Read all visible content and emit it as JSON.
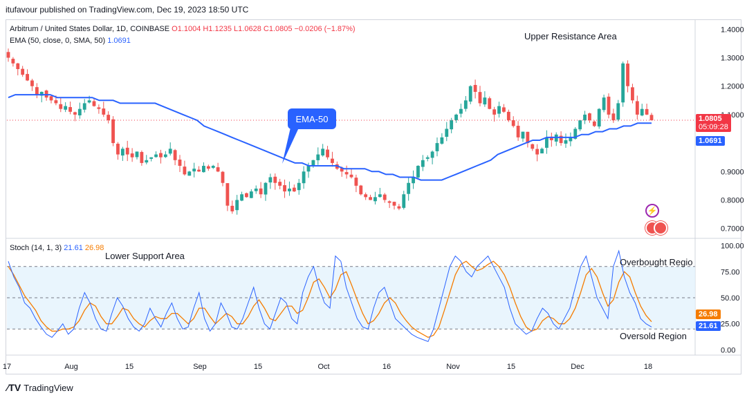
{
  "publisher": "itufavour published on TradingView.com, Dec 19, 2023 18:50 UTC",
  "legend": {
    "symbol": "Arbitrum / United States Dollar, 1D, COINBASE",
    "ohlc": "O1.1004  H1.1235  L1.0628  C1.0805  −0.0206 (−1.87%)",
    "ema_label": "EMA (50, close, 0, SMA, 50)",
    "ema_value": "1.0691",
    "stoch_label": "Stoch (14, 1, 3)",
    "stoch_k": "21.61",
    "stoch_d": "26.98"
  },
  "annotations": {
    "upper_resistance": "Upper Resistance Area",
    "lower_support": "Lower Support Area",
    "ema_callout": "EMA-50",
    "overbought": "Overbought Regio",
    "oversold": "Oversold Region"
  },
  "price_tags": {
    "last_price": "1.0805",
    "countdown": "05:09:28",
    "ema": "1.0691",
    "stoch_d": "26.98",
    "stoch_k": "21.61"
  },
  "footer": {
    "brand": "TradingView"
  },
  "colors": {
    "up": "#26a69a",
    "down": "#ef5350",
    "ema": "#2962ff",
    "stoch_k": "#2962ff",
    "stoch_d": "#f57c00",
    "band": "#e3f2fd"
  },
  "chart_data": [
    {
      "type": "candlestick",
      "title": "Arbitrum / United States Dollar, 1D, COINBASE",
      "ylim": [
        0.67,
        1.43
      ],
      "y_ticks": [
        "1.4000",
        "1.3000",
        "1.2000",
        "1.1000",
        "0.9000",
        "0.8000",
        "0.7000"
      ],
      "x_ticks": [
        "17",
        "Aug",
        "15",
        "Sep",
        "15",
        "Oct",
        "16",
        "Nov",
        "15",
        "Dec",
        "18"
      ],
      "close_series": [
        1.3,
        1.28,
        1.26,
        1.24,
        1.22,
        1.2,
        1.17,
        1.18,
        1.16,
        1.15,
        1.14,
        1.12,
        1.13,
        1.11,
        1.1,
        1.12,
        1.14,
        1.15,
        1.13,
        1.12,
        1.1,
        1.08,
        1.0,
        0.96,
        0.98,
        0.96,
        0.95,
        0.97,
        0.93,
        0.94,
        0.95,
        0.96,
        0.95,
        0.96,
        0.98,
        0.94,
        0.92,
        0.89,
        0.9,
        0.91,
        0.9,
        0.92,
        0.91,
        0.92,
        0.9,
        0.86,
        0.78,
        0.76,
        0.8,
        0.82,
        0.81,
        0.83,
        0.84,
        0.82,
        0.86,
        0.88,
        0.86,
        0.85,
        0.83,
        0.84,
        0.83,
        0.86,
        0.9,
        0.92,
        0.94,
        0.96,
        0.98,
        0.95,
        0.93,
        0.91,
        0.9,
        0.89,
        0.88,
        0.85,
        0.82,
        0.81,
        0.8,
        0.81,
        0.82,
        0.8,
        0.79,
        0.78,
        0.77,
        0.82,
        0.86,
        0.88,
        0.92,
        0.94,
        0.95,
        0.97,
        1.0,
        1.02,
        1.05,
        1.08,
        1.1,
        1.12,
        1.15,
        1.2,
        1.18,
        1.14,
        1.16,
        1.12,
        1.1,
        1.13,
        1.11,
        1.08,
        1.06,
        1.02,
        1.04,
        1.0,
        0.98,
        0.96,
        0.98,
        1.02,
        1.01,
        1.03,
        1.0,
        1.01,
        1.02,
        1.05,
        1.08,
        1.1,
        1.08,
        1.06,
        1.12,
        1.16,
        1.1,
        1.08,
        1.14,
        1.28,
        1.2,
        1.15,
        1.1,
        1.12,
        1.1,
        1.08
      ],
      "ema_series": [
        1.16,
        1.17,
        1.17,
        1.17,
        1.17,
        1.17,
        1.17,
        1.16,
        1.16,
        1.16,
        1.16,
        1.16,
        1.16,
        1.15,
        1.15,
        1.15,
        1.14,
        1.14,
        1.14,
        1.14,
        1.14,
        1.14,
        1.13,
        1.12,
        1.11,
        1.1,
        1.09,
        1.08,
        1.06,
        1.05,
        1.04,
        1.03,
        1.02,
        1.01,
        1.0,
        0.99,
        0.98,
        0.97,
        0.96,
        0.95,
        0.94,
        0.93,
        0.93,
        0.92,
        0.92,
        0.92,
        0.92,
        0.92,
        0.91,
        0.91,
        0.91,
        0.91,
        0.9,
        0.9,
        0.89,
        0.89,
        0.88,
        0.88,
        0.88,
        0.87,
        0.87,
        0.87,
        0.87,
        0.88,
        0.89,
        0.9,
        0.91,
        0.92,
        0.93,
        0.94,
        0.96,
        0.97,
        0.98,
        0.99,
        1.0,
        1.01,
        1.01,
        1.02,
        1.02,
        1.02,
        1.02,
        1.02,
        1.03,
        1.03,
        1.04,
        1.04,
        1.05,
        1.05,
        1.06,
        1.06,
        1.07,
        1.07,
        1.07
      ],
      "last": 1.0805,
      "ema_last": 1.0691
    },
    {
      "type": "line",
      "title": "Stoch (14, 1, 3)",
      "ylim": [
        -5,
        105
      ],
      "y_ticks": [
        "100.00",
        "75.00",
        "50.00",
        "25.00",
        "0.00"
      ],
      "bands": [
        20,
        80
      ],
      "series": [
        {
          "name": "%K",
          "values": [
            85,
            70,
            60,
            45,
            40,
            30,
            22,
            15,
            12,
            18,
            25,
            15,
            20,
            40,
            55,
            45,
            30,
            20,
            18,
            35,
            50,
            42,
            30,
            22,
            18,
            25,
            40,
            30,
            22,
            35,
            45,
            30,
            20,
            22,
            40,
            55,
            30,
            18,
            25,
            45,
            35,
            22,
            20,
            30,
            45,
            60,
            40,
            25,
            20,
            35,
            50,
            45,
            30,
            25,
            55,
            70,
            80,
            60,
            45,
            40,
            90,
            85,
            60,
            45,
            30,
            22,
            20,
            40,
            55,
            60,
            45,
            30,
            25,
            20,
            15,
            12,
            10,
            8,
            20,
            40,
            60,
            80,
            90,
            85,
            75,
            70,
            80,
            85,
            90,
            80,
            70,
            60,
            40,
            25,
            20,
            15,
            18,
            30,
            40,
            35,
            25,
            20,
            30,
            40,
            60,
            80,
            90,
            70,
            50,
            40,
            30,
            80,
            95,
            70,
            55,
            45,
            30,
            25,
            22
          ]
        },
        {
          "name": "%D",
          "values": [
            80,
            72,
            62,
            52,
            45,
            38,
            28,
            22,
            18,
            18,
            20,
            20,
            22,
            28,
            38,
            45,
            42,
            32,
            25,
            25,
            32,
            40,
            38,
            30,
            25,
            22,
            28,
            32,
            30,
            30,
            35,
            35,
            30,
            25,
            30,
            40,
            40,
            32,
            25,
            30,
            35,
            32,
            25,
            25,
            32,
            42,
            48,
            40,
            30,
            28,
            35,
            42,
            42,
            35,
            38,
            50,
            65,
            68,
            60,
            50,
            58,
            72,
            75,
            62,
            48,
            35,
            25,
            28,
            35,
            45,
            50,
            45,
            35,
            28,
            22,
            18,
            15,
            12,
            14,
            22,
            38,
            55,
            72,
            82,
            85,
            80,
            76,
            78,
            82,
            85,
            80,
            72,
            60,
            45,
            32,
            22,
            18,
            20,
            28,
            32,
            30,
            25,
            25,
            30,
            40,
            55,
            72,
            78,
            70,
            55,
            42,
            48,
            65,
            75,
            70,
            55,
            42,
            33,
            27
          ]
        }
      ],
      "k_last": 21.61,
      "d_last": 26.98
    }
  ]
}
